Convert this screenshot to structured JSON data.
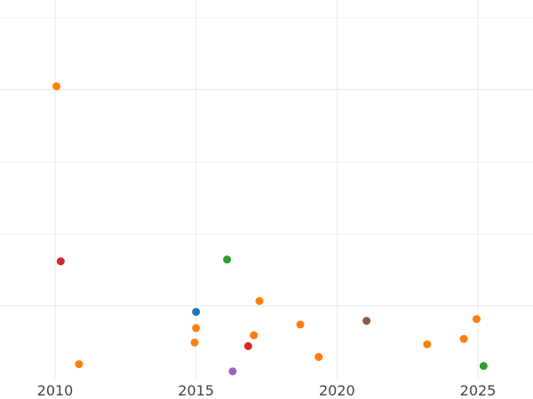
{
  "chart_data": {
    "type": "scatter",
    "title": "",
    "xlabel": "",
    "ylabel": "",
    "xlim": [
      2010,
      2026
    ],
    "x_ticks": [
      "2010",
      "2015",
      "2020",
      "2025"
    ],
    "ylim": [
      0,
      1
    ],
    "grid": true,
    "points": [
      {
        "x": 2010.05,
        "y": 0.81,
        "color": "#ff7f0e"
      },
      {
        "x": 2010.2,
        "y": 0.325,
        "color": "#d62728"
      },
      {
        "x": 2010.85,
        "y": 0.04,
        "color": "#ff7f0e"
      },
      {
        "x": 2015.0,
        "y": 0.185,
        "color": "#1f77b4"
      },
      {
        "x": 2015.0,
        "y": 0.14,
        "color": "#ff7f0e"
      },
      {
        "x": 2014.95,
        "y": 0.1,
        "color": "#ff7f0e"
      },
      {
        "x": 2016.1,
        "y": 0.33,
        "color": "#2ca02c"
      },
      {
        "x": 2016.3,
        "y": 0.02,
        "color": "#9467bd"
      },
      {
        "x": 2016.85,
        "y": 0.09,
        "color": "#d62728"
      },
      {
        "x": 2017.05,
        "y": 0.12,
        "color": "#ff7f0e"
      },
      {
        "x": 2017.25,
        "y": 0.215,
        "color": "#ff7f0e"
      },
      {
        "x": 2018.7,
        "y": 0.15,
        "color": "#ff7f0e"
      },
      {
        "x": 2019.35,
        "y": 0.06,
        "color": "#ff7f0e"
      },
      {
        "x": 2021.05,
        "y": 0.16,
        "color": "#8c564b"
      },
      {
        "x": 2023.2,
        "y": 0.095,
        "color": "#ff7f0e"
      },
      {
        "x": 2024.5,
        "y": 0.11,
        "color": "#ff7f0e"
      },
      {
        "x": 2024.95,
        "y": 0.165,
        "color": "#ff7f0e"
      },
      {
        "x": 2025.2,
        "y": 0.035,
        "color": "#2ca02c"
      }
    ]
  }
}
